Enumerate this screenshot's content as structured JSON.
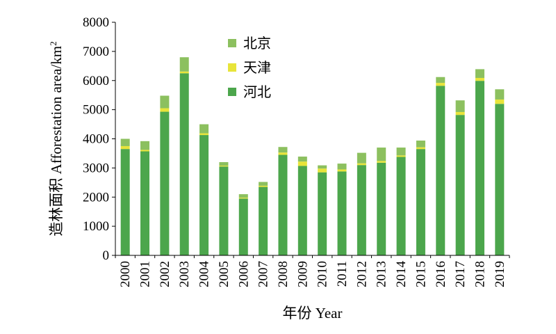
{
  "chart_data": {
    "type": "bar",
    "stacked": true,
    "title": "",
    "xlabel": "年份 Year",
    "ylabel": "造林面积 Afforestation area/km",
    "ylabel_superscript": "2",
    "ylim": [
      0,
      8000
    ],
    "yticks": [
      "0",
      "1000",
      "2000",
      "3000",
      "4000",
      "5000",
      "6000",
      "7000",
      "8000"
    ],
    "grid": false,
    "legend_position": "top-center",
    "categories": [
      "2000",
      "2001",
      "2002",
      "2003",
      "2004",
      "2005",
      "2006",
      "2007",
      "2008",
      "2009",
      "2010",
      "2011",
      "2012",
      "2013",
      "2014",
      "2015",
      "2016",
      "2017",
      "2018",
      "2019"
    ],
    "series": [
      {
        "name": "河北",
        "color": "#4ca64c",
        "values": [
          3650,
          3570,
          4930,
          6250,
          4130,
          3050,
          1950,
          2350,
          3450,
          3070,
          2850,
          2880,
          3100,
          3180,
          3380,
          3650,
          5820,
          4820,
          5990,
          5200
        ]
      },
      {
        "name": "天津",
        "color": "#e8e43a",
        "values": [
          100,
          50,
          120,
          60,
          60,
          30,
          30,
          40,
          80,
          150,
          130,
          70,
          60,
          60,
          50,
          60,
          100,
          100,
          100,
          150
        ]
      },
      {
        "name": "北京",
        "color": "#8cc05f",
        "values": [
          250,
          300,
          430,
          490,
          310,
          120,
          120,
          130,
          190,
          170,
          110,
          200,
          360,
          460,
          270,
          230,
          200,
          400,
          300,
          350
        ]
      }
    ],
    "legend_order": [
      "北京",
      "天津",
      "河北"
    ]
  }
}
